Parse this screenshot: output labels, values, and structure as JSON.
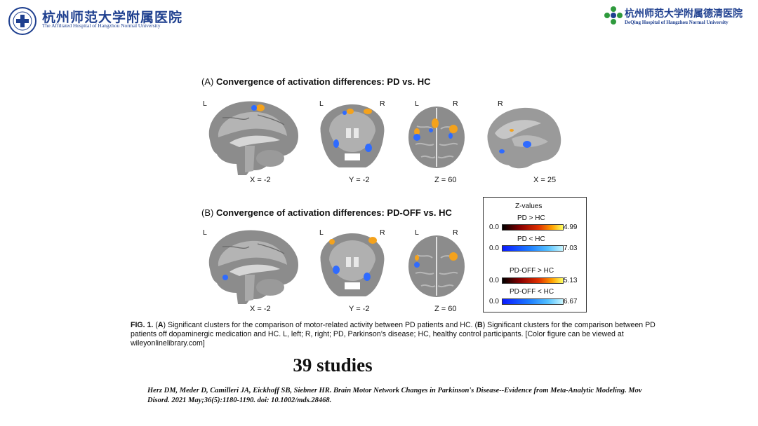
{
  "header": {
    "left_name_cn": "杭州师范大学附属医院",
    "left_name_en": "The Affiliated Hospital of Hangzhou Normal University",
    "right_name_cn": "杭州师范大学附属德清医院",
    "right_name_en": "DeQing Hospital of Hangzhou Normal University"
  },
  "figure": {
    "panel_a": {
      "label": "(A)",
      "title": "Convergence of activation differences: PD vs. HC",
      "views": [
        {
          "left": "L",
          "right": "",
          "coord": "X = -2"
        },
        {
          "left": "L",
          "right": "R",
          "coord": "Y = -2"
        },
        {
          "left": "L",
          "right": "R",
          "coord": "Z = 60"
        },
        {
          "left": "R",
          "right": "",
          "coord": "X = 25"
        }
      ]
    },
    "panel_b": {
      "label": "(B)",
      "title": "Convergence of activation differences: PD-OFF vs. HC",
      "views": [
        {
          "left": "L",
          "right": "",
          "coord": "X = -2"
        },
        {
          "left": "L",
          "right": "R",
          "coord": "Y = -2"
        },
        {
          "left": "L",
          "right": "R",
          "coord": "Z = 60"
        }
      ]
    },
    "legend": {
      "title": "Z-values",
      "scales": [
        {
          "label": "PD > HC",
          "min": "0.0",
          "max": "4.99",
          "palette": "warm"
        },
        {
          "label": "PD < HC",
          "min": "0.0",
          "max": "7.03",
          "palette": "cool"
        },
        {
          "label": "PD-OFF > HC",
          "min": "0.0",
          "max": "5.13",
          "palette": "warm"
        },
        {
          "label": "PD-OFF < HC",
          "min": "0.0",
          "max": "6.67",
          "palette": "cool"
        }
      ]
    },
    "caption": {
      "fig_label": "FIG. 1.",
      "p1": " (",
      "a": "A",
      "p2": ") Significant clusters for the comparison of motor-related activity between PD patients and HC. (",
      "b": "B",
      "p3": ") Significant clusters for the comparison between PD patients off dopaminergic medication and HC. L, left; R, right; PD, Parkinson’s disease; HC, healthy control participants. [Color figure can be viewed at wileyonlinelibrary.com]"
    }
  },
  "studies_count": "39 studies",
  "reference": "Herz DM, Meder D, Camilleri JA, Eickhoff SB, Siebner HR. Brain Motor Network Changes in Parkinson's Disease--Evidence from Meta-Analytic Modeling. Mov Disord. 2021 May;36(5):1180-1190. doi: 10.1002/mds.28468.",
  "colors": {
    "brand_blue": "#1e3f8f",
    "warm_blob": "#f4a21c",
    "cool_blob": "#2f6bff",
    "brain_gray": "#8c8c8c"
  }
}
